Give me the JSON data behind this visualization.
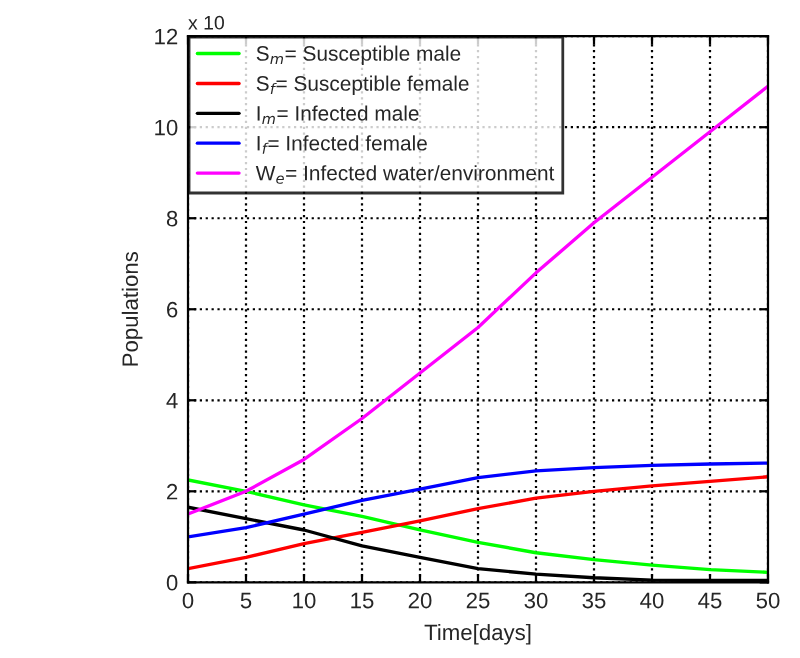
{
  "chart_data": {
    "type": "line",
    "xlabel": "Time[days]",
    "ylabel": "Populations",
    "annotations": [
      "x 10"
    ],
    "x": [
      0,
      5,
      10,
      15,
      20,
      25,
      30,
      35,
      40,
      45,
      50
    ],
    "series": [
      {
        "name": "S$_{m}$= Susceptible male",
        "color": "#00ff00",
        "values": [
          2.25,
          2.0,
          1.7,
          1.45,
          1.15,
          0.88,
          0.65,
          0.5,
          0.38,
          0.28,
          0.22
        ]
      },
      {
        "name": "S$_{f}$= Susceptible female",
        "color": "#ff0000",
        "values": [
          0.3,
          0.55,
          0.85,
          1.1,
          1.35,
          1.62,
          1.85,
          2.0,
          2.12,
          2.22,
          2.32
        ]
      },
      {
        "name": "I$_{m}$= Infected male",
        "color": "#000000",
        "values": [
          1.65,
          1.4,
          1.15,
          0.8,
          0.55,
          0.3,
          0.18,
          0.1,
          0.05,
          0.04,
          0.04
        ]
      },
      {
        "name": "I$_{f}$= Infected female",
        "color": "#0000ff",
        "values": [
          1.0,
          1.2,
          1.5,
          1.8,
          2.05,
          2.3,
          2.45,
          2.52,
          2.57,
          2.6,
          2.62
        ]
      },
      {
        "name": "W$_{e}$= Infected water/environment",
        "color": "#ff00ff",
        "values": [
          1.5,
          2.0,
          2.7,
          3.6,
          4.6,
          5.6,
          6.8,
          7.9,
          8.9,
          9.9,
          10.9
        ]
      }
    ],
    "xlim": [
      0,
      50
    ],
    "xticks": [
      0,
      5,
      10,
      15,
      20,
      25,
      30,
      35,
      40,
      45,
      50
    ],
    "ylim": [
      0,
      12
    ],
    "yticks": [
      0,
      2,
      4,
      6,
      8,
      10,
      12
    ],
    "grid": true,
    "legend": "top left",
    "line_style": "solid",
    "marker": "none"
  }
}
